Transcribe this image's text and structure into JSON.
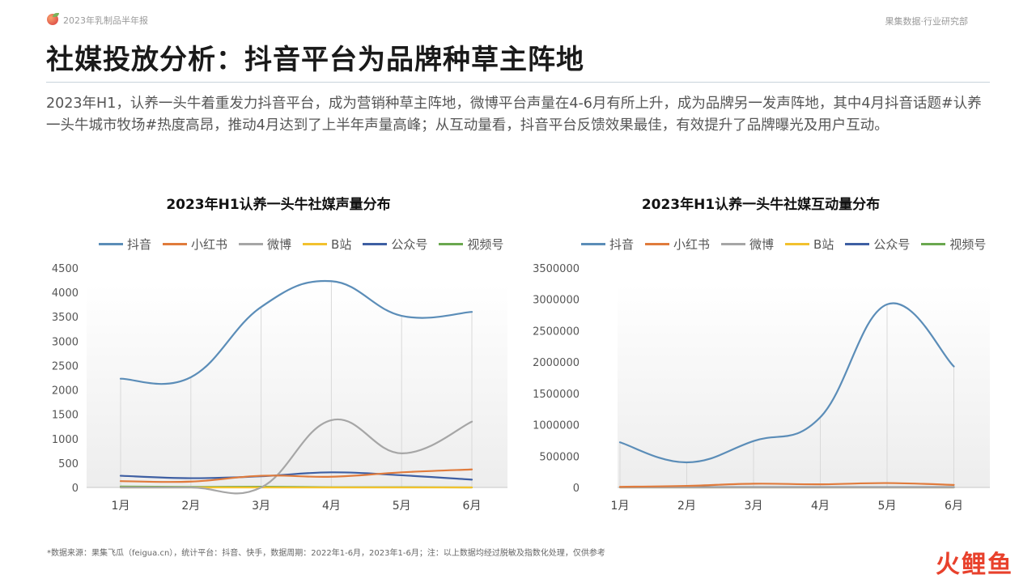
{
  "header": {
    "report_name": "2023年乳制品半年报",
    "source_org": "果集数据·行业研究部"
  },
  "page_title": "社媒投放分析：抖音平台为品牌种草主阵地",
  "summary": "2023年H1，认养一头牛着重发力抖音平台，成为营销种草主阵地，微博平台声量在4-6月有所上升，成为品牌另一发声阵地，其中4月抖音话题#认养一头牛城市牧场#热度高昂，推动4月达到了上半年声量高峰；从互动量看，抖音平台反馈效果最佳，有效提升了品牌曝光及用户互动。",
  "footnote": "*数据来源：果集飞瓜（feigua.cn），统计平台：抖音、快手，数据周期：2022年1-6月，2023年1-6月；注：以上数据均经过脱敏及指数化处理，仅供参考",
  "watermark": "火鲤鱼",
  "chart_data": [
    {
      "type": "line",
      "title": "2023年H1认养一头牛社媒声量分布",
      "categories": [
        "1月",
        "2月",
        "3月",
        "4月",
        "5月",
        "6月"
      ],
      "ylim": [
        0,
        4500
      ],
      "yticks": [
        "0",
        "500",
        "1000",
        "1500",
        "2000",
        "2500",
        "3000",
        "3500",
        "4000",
        "4500"
      ],
      "legend_position": "top",
      "grid": "vertical",
      "series": [
        {
          "name": "抖音",
          "color": "#5b8db8",
          "values": [
            2230,
            2260,
            3700,
            4230,
            3520,
            3600
          ]
        },
        {
          "name": "小红书",
          "color": "#e07b3c",
          "values": [
            130,
            120,
            240,
            220,
            310,
            370
          ]
        },
        {
          "name": "微博",
          "color": "#a6a6a6",
          "values": [
            0,
            0,
            0,
            1380,
            700,
            1350
          ]
        },
        {
          "name": "B站",
          "color": "#f2c12e",
          "values": [
            0,
            0,
            0,
            0,
            0,
            0
          ]
        },
        {
          "name": "公众号",
          "color": "#3e5fa3",
          "values": [
            240,
            190,
            230,
            310,
            250,
            160
          ]
        },
        {
          "name": "视频号",
          "color": "#6aa84f",
          "values": [
            20,
            10,
            15,
            5,
            5,
            0
          ]
        }
      ]
    },
    {
      "type": "line",
      "title": "2023年H1认养一头牛社媒互动量分布",
      "categories": [
        "1月",
        "2月",
        "3月",
        "4月",
        "5月",
        "6月"
      ],
      "ylim": [
        0,
        3500000
      ],
      "yticks": [
        "0",
        "500000",
        "1000000",
        "1500000",
        "2000000",
        "2500000",
        "3000000",
        "3500000"
      ],
      "legend_position": "top",
      "grid": "vertical",
      "series": [
        {
          "name": "抖音",
          "color": "#5b8db8",
          "values": [
            720000,
            400000,
            740000,
            1120000,
            2920000,
            1930000
          ]
        },
        {
          "name": "小红书",
          "color": "#e07b3c",
          "values": [
            10000,
            25000,
            60000,
            50000,
            70000,
            40000
          ]
        },
        {
          "name": "微博",
          "color": "#a6a6a6",
          "values": [
            0,
            0,
            0,
            0,
            0,
            0
          ]
        },
        {
          "name": "B站",
          "color": "#f2c12e",
          "values": [
            0,
            0,
            0,
            0,
            0,
            0
          ]
        },
        {
          "name": "公众号",
          "color": "#3e5fa3",
          "values": [
            5000,
            5000,
            5000,
            5000,
            5000,
            5000
          ]
        },
        {
          "name": "视频号",
          "color": "#6aa84f",
          "values": [
            3000,
            3000,
            3000,
            3000,
            3000,
            3000
          ]
        }
      ]
    }
  ]
}
